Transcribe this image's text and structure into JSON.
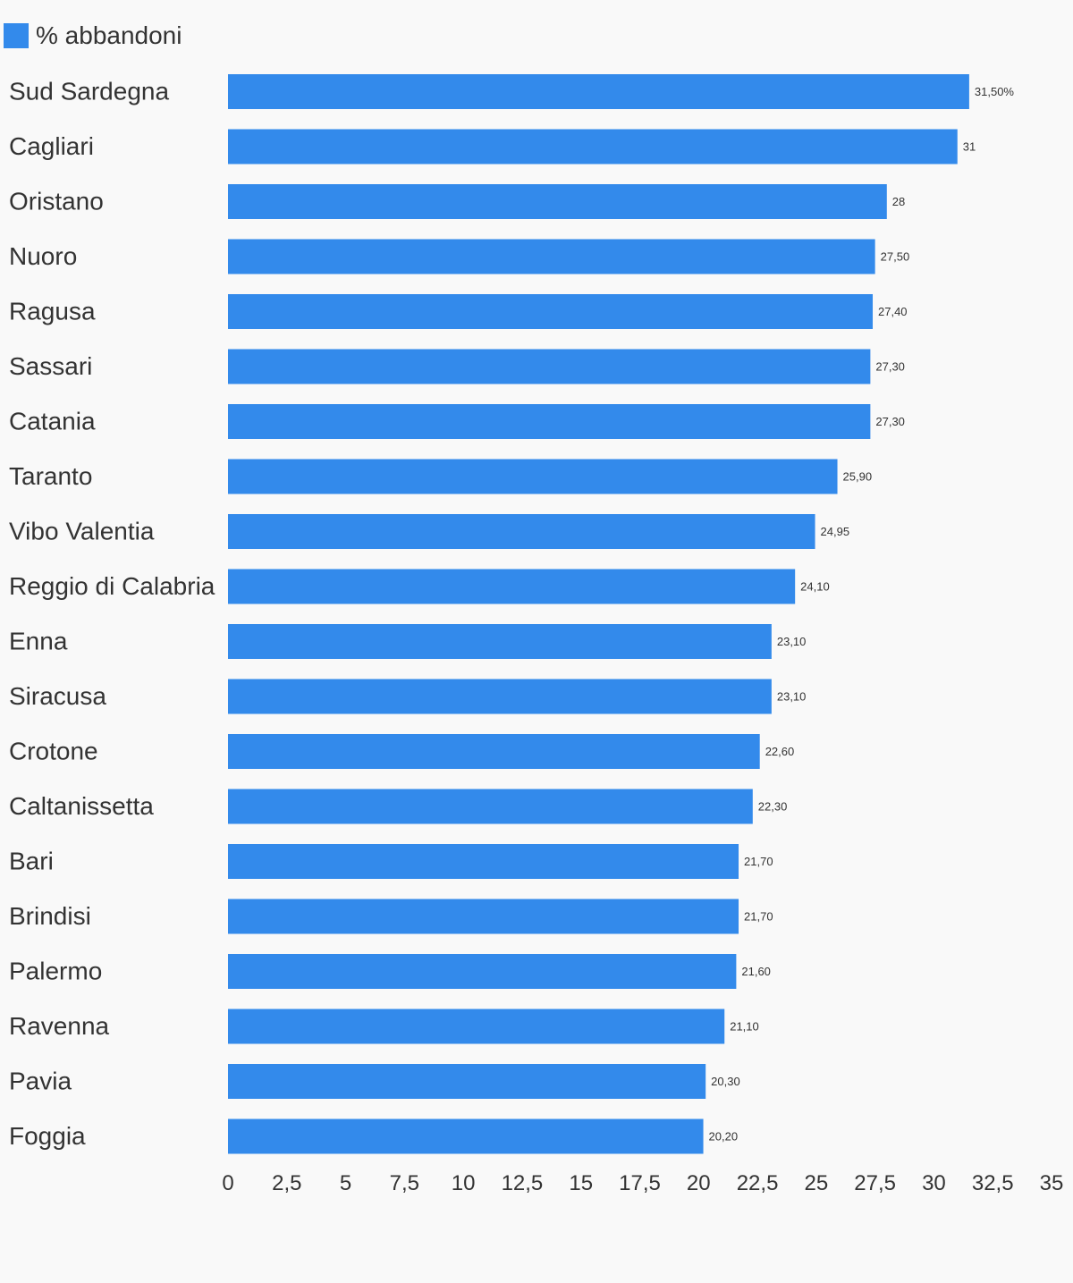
{
  "chart_data": {
    "type": "bar",
    "orientation": "horizontal",
    "categories": [
      "Sud Sardegna",
      "Cagliari",
      "Oristano",
      "Nuoro",
      "Ragusa",
      "Sassari",
      "Catania",
      "Taranto",
      "Vibo Valentia",
      "Reggio di Calabria",
      "Enna",
      "Siracusa",
      "Crotone",
      "Caltanissetta",
      "Bari",
      "Brindisi",
      "Palermo",
      "Ravenna",
      "Pavia",
      "Foggia"
    ],
    "series": [
      {
        "name": "% abbandoni",
        "values": [
          31.5,
          31,
          28,
          27.5,
          27.4,
          27.3,
          27.3,
          25.9,
          24.95,
          24.1,
          23.1,
          23.1,
          22.6,
          22.3,
          21.7,
          21.7,
          21.6,
          21.1,
          20.3,
          20.2
        ],
        "labels": [
          "31,50%",
          "31",
          "28",
          "27,50",
          "27,40",
          "27,30",
          "27,30",
          "25,90",
          "24,95",
          "24,10",
          "23,10",
          "23,10",
          "22,60",
          "22,30",
          "21,70",
          "21,70",
          "21,60",
          "21,10",
          "20,30",
          "20,20"
        ]
      }
    ],
    "xlim": [
      0,
      35
    ],
    "xticks": [
      "0",
      "2,5",
      "5",
      "7,5",
      "10",
      "12,5",
      "15",
      "17,5",
      "20",
      "22,5",
      "25",
      "27,5",
      "30",
      "32,5",
      "35"
    ],
    "legend_position": "top-left",
    "grid": false,
    "bar_color": "#338aeb"
  },
  "colors": {
    "bar": "#338aeb",
    "background": "#f9f9f9",
    "text": "#333333"
  }
}
